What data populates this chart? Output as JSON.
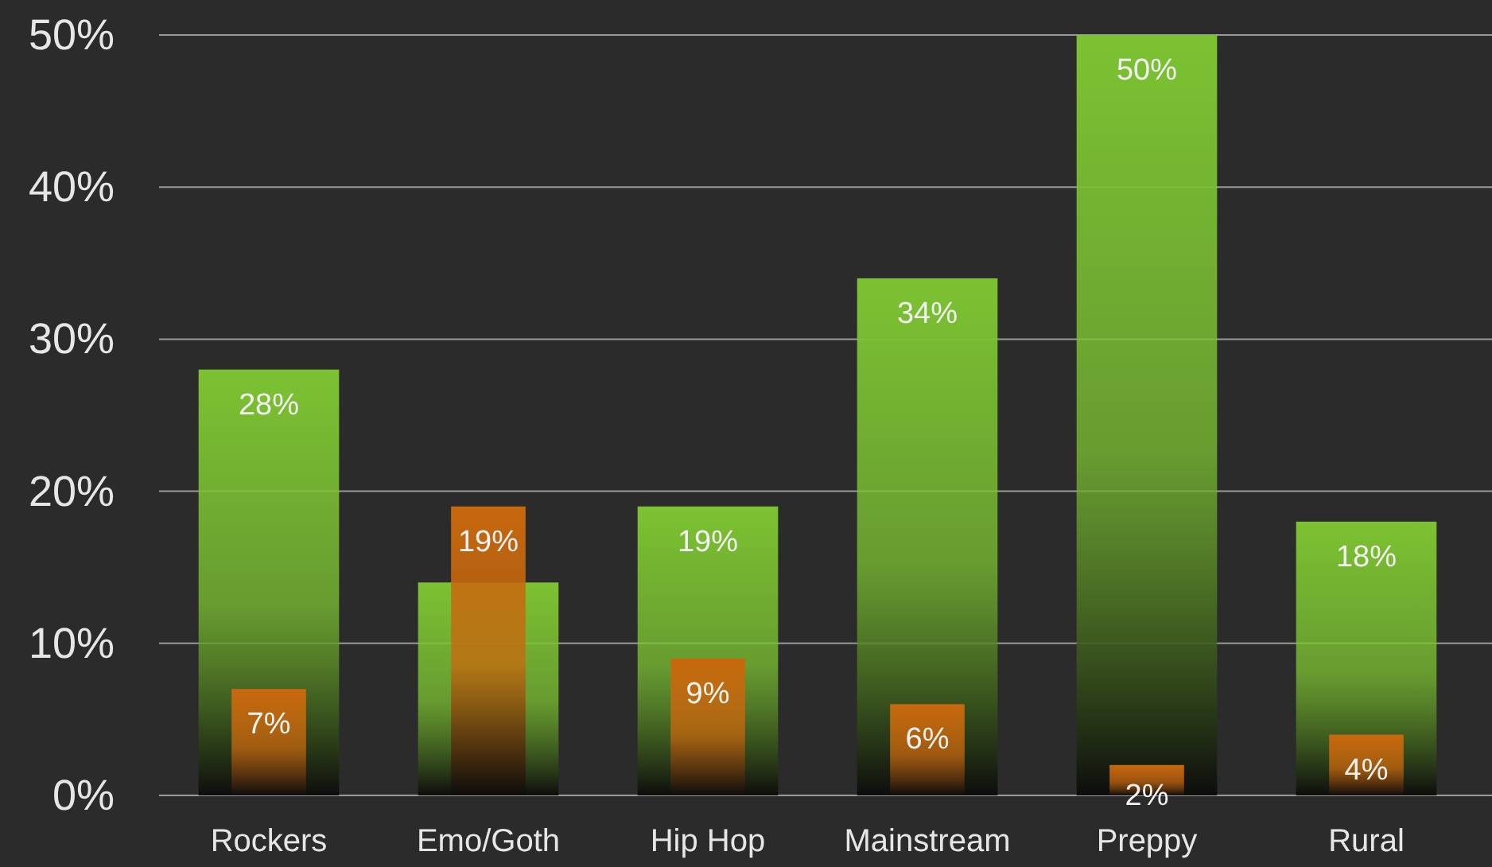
{
  "chart_data": {
    "type": "bar",
    "categories": [
      "Rockers",
      "Emo/Goth",
      "Hip Hop",
      "Mainstream",
      "Preppy",
      "Rural"
    ],
    "series": [
      {
        "color": "#7cc232",
        "values": [
          28,
          14,
          19,
          34,
          50,
          18
        ],
        "value_labels": [
          "28%",
          null,
          "19%",
          "34%",
          "50%",
          "18%"
        ]
      },
      {
        "color": "#c8680e",
        "values": [
          7,
          19,
          9,
          6,
          2,
          4
        ],
        "value_labels": [
          "7%",
          "19%",
          "9%",
          "6%",
          "2%",
          "4%"
        ]
      }
    ],
    "ylim": [
      0,
      50
    ],
    "yticks": [
      {
        "value": 0,
        "label": "0%"
      },
      {
        "value": 10,
        "label": "10%"
      },
      {
        "value": 20,
        "label": "20%"
      },
      {
        "value": 30,
        "label": "30%"
      },
      {
        "value": 40,
        "label": "40%"
      },
      {
        "value": 50,
        "label": "50%"
      }
    ],
    "grid": "y"
  }
}
